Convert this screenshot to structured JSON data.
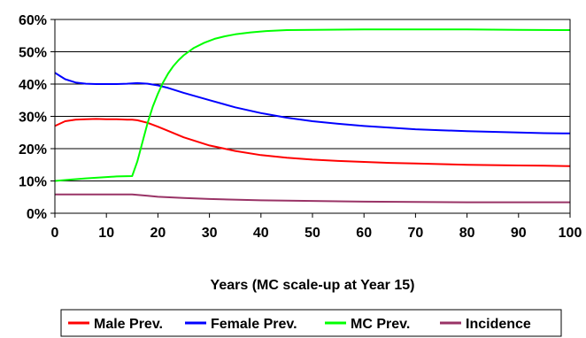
{
  "chart_data": {
    "type": "line",
    "xlabel": "Years (MC scale-up at Year 15)",
    "ylabel": "",
    "xlim": [
      0,
      100
    ],
    "ylim": [
      0,
      60
    ],
    "x_ticks": [
      0,
      10,
      20,
      30,
      40,
      50,
      60,
      70,
      80,
      90,
      100
    ],
    "y_ticks": [
      0,
      10,
      20,
      30,
      40,
      50,
      60
    ],
    "y_tick_format": "percent",
    "grid": "horizontal",
    "legend_position": "bottom",
    "series": [
      {
        "name": "Male Prev.",
        "color": "#ff0000",
        "x": [
          0,
          2,
          4,
          6,
          8,
          10,
          12,
          14,
          15,
          16,
          18,
          20,
          22,
          25,
          30,
          35,
          40,
          45,
          50,
          55,
          60,
          65,
          70,
          75,
          80,
          85,
          90,
          95,
          100
        ],
        "y": [
          27,
          28.5,
          29,
          29.1,
          29.2,
          29.1,
          29.1,
          29,
          29,
          28.8,
          28,
          26.8,
          25.5,
          23.5,
          21,
          19.3,
          18,
          17.2,
          16.6,
          16.2,
          15.9,
          15.6,
          15.4,
          15.2,
          15,
          14.9,
          14.8,
          14.7,
          14.6
        ]
      },
      {
        "name": "Female Prev.",
        "color": "#0000ff",
        "x": [
          0,
          1,
          2,
          4,
          6,
          8,
          10,
          12,
          14,
          16,
          18,
          20,
          22,
          25,
          30,
          35,
          40,
          45,
          50,
          55,
          60,
          65,
          70,
          75,
          80,
          85,
          90,
          95,
          100
        ],
        "y": [
          43.5,
          42.5,
          41.5,
          40.5,
          40.1,
          40,
          40,
          40,
          40.1,
          40.3,
          40.1,
          39.6,
          38.8,
          37.3,
          35,
          32.8,
          31,
          29.6,
          28.5,
          27.7,
          27,
          26.5,
          26,
          25.7,
          25.4,
          25.2,
          25,
          24.8,
          24.7
        ]
      },
      {
        "name": "MC Prev.",
        "color": "#00ff00",
        "x": [
          0,
          3,
          6,
          9,
          12,
          15,
          16,
          17,
          18,
          19,
          20,
          21,
          22,
          23,
          24,
          25,
          27,
          29,
          31,
          33,
          35,
          38,
          41,
          45,
          50,
          60,
          70,
          80,
          90,
          100
        ],
        "y": [
          10,
          10.4,
          10.8,
          11.1,
          11.4,
          11.5,
          16,
          22,
          28,
          33,
          37,
          40.5,
          43.3,
          45.6,
          47.4,
          48.9,
          51.2,
          52.8,
          54,
          54.8,
          55.4,
          56,
          56.4,
          56.7,
          56.8,
          56.9,
          56.9,
          56.9,
          56.8,
          56.7
        ]
      },
      {
        "name": "Incidence",
        "color": "#993366",
        "x": [
          0,
          5,
          10,
          15,
          18,
          20,
          25,
          30,
          40,
          50,
          60,
          70,
          80,
          90,
          100
        ],
        "y": [
          5.8,
          5.8,
          5.8,
          5.8,
          5.4,
          5.1,
          4.7,
          4.4,
          4,
          3.8,
          3.6,
          3.5,
          3.4,
          3.4,
          3.4
        ]
      }
    ]
  }
}
